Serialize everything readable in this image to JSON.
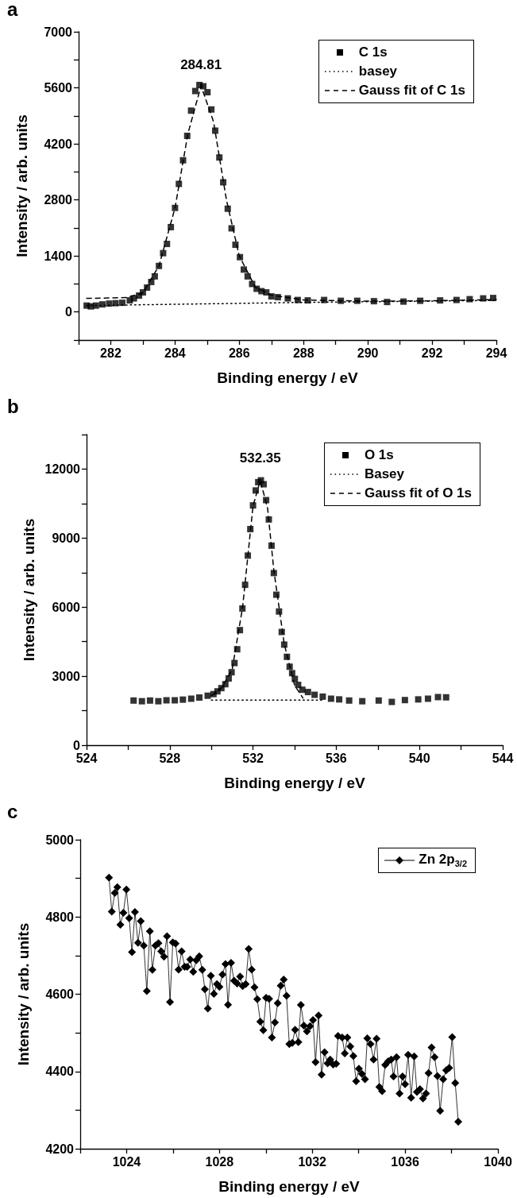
{
  "chart_data": [
    {
      "type": "scatter",
      "title": "a",
      "xlabel": "Binding energy / eV",
      "ylabel": "Intensity / arb. units",
      "xlim": [
        281,
        294
      ],
      "ylim": [
        -700,
        7000
      ],
      "xticks": [
        {
          "value": 281,
          "label": null
        },
        282,
        {
          "value": 283,
          "label": null
        },
        284,
        {
          "value": 285,
          "label": null
        },
        286,
        {
          "value": 287,
          "label": null
        },
        288,
        {
          "value": 289,
          "label": null
        },
        290,
        {
          "value": 291,
          "label": null
        },
        292,
        {
          "value": 293,
          "label": null
        },
        294
      ],
      "yticks": [
        {
          "value": -700,
          "label": null
        },
        0,
        {
          "value": 700,
          "label": null
        },
        1400,
        {
          "value": 2100,
          "label": null
        },
        2800,
        {
          "value": 3500,
          "label": null
        },
        4200,
        {
          "value": 4900,
          "label": null
        },
        5600,
        {
          "value": 6300,
          "label": null
        },
        7000
      ],
      "legend": "top right",
      "annotations": [
        {
          "text": "284.81",
          "x": 284.81,
          "y": 5650
        }
      ],
      "series": [
        {
          "name": "C 1s",
          "marker": "square",
          "color": "#000000",
          "x": [
            281.25,
            281.38,
            281.54,
            281.74,
            281.95,
            282.15,
            282.36,
            282.59,
            282.72,
            282.88,
            283.0,
            283.13,
            283.26,
            283.37,
            283.5,
            283.63,
            283.75,
            283.87,
            284.0,
            284.12,
            284.25,
            284.38,
            284.5,
            284.63,
            284.76,
            284.88,
            285.01,
            285.13,
            285.25,
            285.38,
            285.5,
            285.64,
            285.76,
            285.88,
            286.02,
            286.14,
            286.26,
            286.4,
            286.54,
            286.69,
            286.84,
            287.0,
            287.2,
            287.51,
            287.82,
            288.13,
            288.64,
            289.16,
            289.67,
            290.19,
            290.6,
            291.11,
            291.63,
            292.25,
            292.76,
            293.17,
            293.59,
            293.9
          ],
          "values": [
            160,
            140,
            160,
            190,
            210,
            220,
            230,
            290,
            340,
            410,
            490,
            610,
            750,
            890,
            1150,
            1470,
            1700,
            2120,
            2600,
            3200,
            3790,
            4400,
            5030,
            5520,
            5670,
            5640,
            5490,
            5060,
            4530,
            3860,
            3240,
            2580,
            2090,
            1680,
            1370,
            1060,
            890,
            700,
            580,
            520,
            490,
            390,
            370,
            340,
            300,
            290,
            300,
            280,
            280,
            270,
            250,
            260,
            280,
            290,
            300,
            320,
            340,
            350
          ]
        },
        {
          "name": "basey",
          "type": "line",
          "marker": "none",
          "line_style": "dotted",
          "color": "#000000",
          "x": [
            281.25,
            288,
            294
          ],
          "values": [
            160,
            240,
            290
          ]
        },
        {
          "name": "Gauss fit of C 1s",
          "type": "line",
          "marker": "none",
          "line_style": "dashed",
          "color": "#000000",
          "x": [
            281.25,
            282.5,
            283,
            283.5,
            284,
            284.4,
            284.81,
            285.2,
            285.6,
            286,
            286.5,
            287,
            288,
            290,
            292,
            294
          ],
          "values": [
            340,
            360,
            480,
            1150,
            2600,
            4450,
            5650,
            4750,
            2800,
            1400,
            620,
            420,
            300,
            270,
            280,
            310
          ]
        }
      ]
    },
    {
      "type": "scatter",
      "title": "b",
      "xlabel": "Binding energy / eV",
      "ylabel": "Intensity / arb. units",
      "xlim": [
        524,
        544
      ],
      "ylim": [
        0,
        13500
      ],
      "xticks": [
        524,
        {
          "value": 526,
          "label": null
        },
        528,
        {
          "value": 530,
          "label": null
        },
        532,
        {
          "value": 534,
          "label": null
        },
        536,
        {
          "value": 538,
          "label": null
        },
        540,
        {
          "value": 542,
          "label": null
        },
        544
      ],
      "yticks": [
        0,
        {
          "value": 1500,
          "label": null
        },
        3000,
        {
          "value": 4500,
          "label": null
        },
        6000,
        {
          "value": 7500,
          "label": null
        },
        9000,
        {
          "value": 10500,
          "label": null
        },
        12000,
        {
          "value": 13500,
          "label": null
        }
      ],
      "legend": "top right",
      "annotations": [
        {
          "text": "532.35",
          "x": 532.35,
          "y": 11550
        }
      ],
      "series": [
        {
          "name": "O 1s",
          "marker": "square",
          "color": "#000000",
          "x": [
            526.26,
            526.66,
            527.05,
            527.45,
            527.84,
            528.24,
            528.63,
            529.03,
            529.42,
            529.82,
            530.1,
            530.29,
            530.48,
            530.67,
            530.83,
            530.97,
            531.11,
            531.24,
            531.37,
            531.49,
            531.62,
            531.75,
            531.87,
            532.0,
            532.13,
            532.25,
            532.38,
            532.51,
            532.63,
            532.76,
            532.89,
            533.0,
            533.12,
            533.25,
            533.38,
            533.5,
            533.63,
            533.76,
            533.88,
            534.01,
            534.17,
            534.37,
            534.64,
            534.96,
            535.35,
            535.75,
            536.14,
            536.62,
            537.25,
            538.04,
            538.67,
            539.3,
            539.94,
            540.41,
            540.89,
            541.28
          ],
          "values": [
            1940,
            1910,
            1940,
            1910,
            1950,
            1950,
            1980,
            2020,
            2070,
            2150,
            2220,
            2340,
            2480,
            2650,
            2900,
            3170,
            3570,
            4170,
            5000,
            5940,
            6970,
            8240,
            9390,
            10420,
            11070,
            11430,
            11510,
            11340,
            10650,
            9810,
            8670,
            7480,
            6540,
            5810,
            4920,
            4370,
            3840,
            3410,
            3130,
            2880,
            2620,
            2410,
            2310,
            2190,
            2110,
            2020,
            1990,
            1940,
            1910,
            1940,
            1880,
            1960,
            1990,
            2020,
            2090,
            2080
          ]
        },
        {
          "name": "Basey",
          "type": "line",
          "marker": "none",
          "line_style": "dotted",
          "color": "#000000",
          "x": [
            530,
            535.3
          ],
          "values": [
            1960,
            1960
          ]
        },
        {
          "name": "Gauss fit of O 1s",
          "type": "line",
          "marker": "none",
          "line_style": "dashed",
          "color": "#000000",
          "x": [
            530,
            530.5,
            531,
            531.5,
            532,
            532.35,
            532.7,
            533,
            533.5,
            534,
            534.4
          ],
          "values": [
            2150,
            2500,
            3300,
            6000,
            10400,
            11500,
            10300,
            7600,
            4400,
            2600,
            2050
          ]
        }
      ]
    },
    {
      "type": "line",
      "title": "c",
      "xlabel": "Binding energy / eV",
      "ylabel": "Intensity / arb. units",
      "xlim": [
        1022,
        1040
      ],
      "ylim": [
        4200,
        5000
      ],
      "xticks": [
        {
          "value": 1022,
          "label": null
        },
        1024,
        {
          "value": 1026,
          "label": null
        },
        1028,
        {
          "value": 1030,
          "label": null
        },
        1032,
        {
          "value": 1034,
          "label": null
        },
        1036,
        {
          "value": 1038,
          "label": null
        },
        1040
      ],
      "yticks": [
        4200,
        {
          "value": 4300,
          "label": null
        },
        4400,
        {
          "value": 4500,
          "label": null
        },
        4600,
        {
          "value": 4700,
          "label": null
        },
        4800,
        {
          "value": 4900,
          "label": null
        },
        5000
      ],
      "legend": "top right",
      "marker": "diamond",
      "line_style": "solid",
      "series": [
        {
          "name": "Zn 2p$_{3/2}$",
          "color": "#000000",
          "x": [
            1023.24,
            1023.36,
            1023.49,
            1023.6,
            1023.73,
            1023.86,
            1023.99,
            1024.11,
            1024.23,
            1024.36,
            1024.49,
            1024.61,
            1024.74,
            1024.87,
            1025.0,
            1025.11,
            1025.24,
            1025.37,
            1025.49,
            1025.61,
            1025.74,
            1025.87,
            1025.99,
            1026.11,
            1026.24,
            1026.37,
            1026.5,
            1026.61,
            1026.74,
            1026.87,
            1027.0,
            1027.13,
            1027.26,
            1027.37,
            1027.5,
            1027.63,
            1027.76,
            1027.89,
            1028.0,
            1028.13,
            1028.26,
            1028.37,
            1028.5,
            1028.63,
            1028.76,
            1028.89,
            1029.0,
            1029.13,
            1029.26,
            1029.39,
            1029.51,
            1029.63,
            1029.76,
            1029.89,
            1030.01,
            1030.14,
            1030.26,
            1030.39,
            1030.51,
            1030.64,
            1030.77,
            1030.89,
            1031.01,
            1031.14,
            1031.26,
            1031.4,
            1031.51,
            1031.64,
            1031.77,
            1031.9,
            1032.03,
            1032.14,
            1032.27,
            1032.4,
            1032.53,
            1032.66,
            1032.77,
            1032.9,
            1033.03,
            1033.11,
            1033.29,
            1033.4,
            1033.51,
            1033.64,
            1033.77,
            1033.89,
            1034.01,
            1034.14,
            1034.27,
            1034.37,
            1034.51,
            1034.64,
            1034.77,
            1034.89,
            1035.01,
            1035.14,
            1035.27,
            1035.4,
            1035.5,
            1035.63,
            1035.76,
            1035.89,
            1036.0,
            1036.13,
            1036.26,
            1036.39,
            1036.51,
            1036.64,
            1036.77,
            1036.9,
            1037.01,
            1037.14,
            1037.27,
            1037.39,
            1037.51,
            1037.64,
            1037.77,
            1037.9,
            1038.03,
            1038.16,
            1038.29
          ],
          "values": [
            4902,
            4814,
            4862,
            4877,
            4780,
            4811,
            4871,
            4797,
            4709,
            4813,
            4733,
            4789,
            4726,
            4608,
            4763,
            4663,
            4726,
            4732,
            4711,
            4697,
            4750,
            4580,
            4734,
            4731,
            4664,
            4711,
            4671,
            4671,
            4690,
            4658,
            4688,
            4698,
            4663,
            4613,
            4563,
            4648,
            4601,
            4626,
            4619,
            4651,
            4678,
            4573,
            4681,
            4635,
            4628,
            4646,
            4621,
            4626,
            4717,
            4664,
            4618,
            4587,
            4529,
            4507,
            4591,
            4588,
            4488,
            4527,
            4577,
            4622,
            4638,
            4596,
            4471,
            4474,
            4508,
            4476,
            4572,
            4519,
            4504,
            4517,
            4533,
            4424,
            4545,
            4392,
            4450,
            4421,
            4431,
            4418,
            4420,
            4492,
            4488,
            4447,
            4488,
            4465,
            4440,
            4375,
            4407,
            4394,
            4380,
            4486,
            4471,
            4431,
            4485,
            4360,
            4349,
            4417,
            4426,
            4431,
            4387,
            4437,
            4343,
            4387,
            4367,
            4443,
            4332,
            4439,
            4347,
            4354,
            4330,
            4343,
            4396,
            4462,
            4437,
            4388,
            4298,
            4380,
            4403,
            4409,
            4489,
            4370,
            4270
          ]
        }
      ]
    }
  ]
}
